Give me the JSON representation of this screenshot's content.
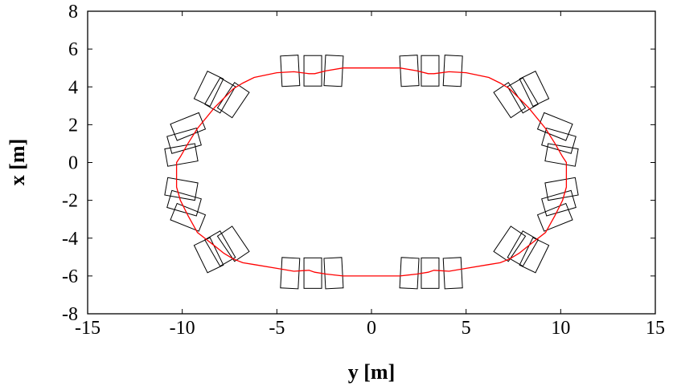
{
  "chart_data": {
    "type": "line",
    "xlabel": "y [m]",
    "ylabel": "x [m]",
    "xlim": [
      -15,
      15
    ],
    "ylim": [
      -8,
      8
    ],
    "x_ticks": [
      -15,
      -10,
      -5,
      0,
      5,
      10,
      15
    ],
    "y_ticks": [
      -8,
      -6,
      -4,
      -2,
      0,
      2,
      4,
      6,
      8
    ],
    "x_tick_labels": [
      "-15",
      "-10",
      "-5",
      "0",
      "5",
      "10",
      "15"
    ],
    "y_tick_labels": [
      "-8",
      "-6",
      "-4",
      "-2",
      "0",
      "2",
      "4",
      "6",
      "8"
    ],
    "grid": false,
    "series": [
      {
        "color": "#ff0000",
        "x": [
          -1.5,
          -2.4,
          -3.0,
          -3.3,
          -4.1,
          -5.0,
          -6.2,
          -6.8,
          -7.3,
          -7.8,
          -8.3,
          -9.2,
          -9.7,
          -10.1,
          -10.3,
          -10.3,
          -10.1,
          -9.7,
          -9.2,
          -8.3,
          -7.8,
          -7.3,
          -6.8,
          -6.2,
          -5.0,
          -4.1,
          -3.3,
          -3.0,
          -2.4,
          -1.5,
          0.0,
          1.5,
          2.4,
          3.0,
          3.3,
          4.1,
          5.0,
          6.2,
          6.8,
          7.3,
          7.8,
          8.3,
          9.2,
          9.7,
          10.1,
          10.3,
          10.3,
          10.1,
          9.7,
          9.2,
          8.3,
          7.8,
          7.3,
          6.8,
          6.2,
          5.0,
          4.1,
          3.3,
          3.0,
          2.4,
          1.5,
          0.0,
          -1.5
        ],
        "y": [
          5.0,
          4.85,
          4.7,
          4.7,
          4.8,
          4.75,
          4.5,
          4.2,
          3.9,
          3.4,
          2.9,
          1.8,
          1.0,
          0.3,
          0.0,
          -1.3,
          -2.0,
          -2.8,
          -3.7,
          -4.4,
          -4.8,
          -5.1,
          -5.3,
          -5.4,
          -5.6,
          -5.75,
          -5.7,
          -5.8,
          -5.9,
          -6.0,
          -6.0,
          -6.0,
          -5.9,
          -5.8,
          -5.7,
          -5.75,
          -5.6,
          -5.4,
          -5.3,
          -5.1,
          -4.8,
          -4.4,
          -3.7,
          -2.8,
          -2.0,
          -1.3,
          0.0,
          0.3,
          1.0,
          1.8,
          2.9,
          3.4,
          3.9,
          4.2,
          4.5,
          4.75,
          4.8,
          4.7,
          4.7,
          4.85,
          5.0,
          5.0,
          5.0
        ]
      }
    ]
  }
}
